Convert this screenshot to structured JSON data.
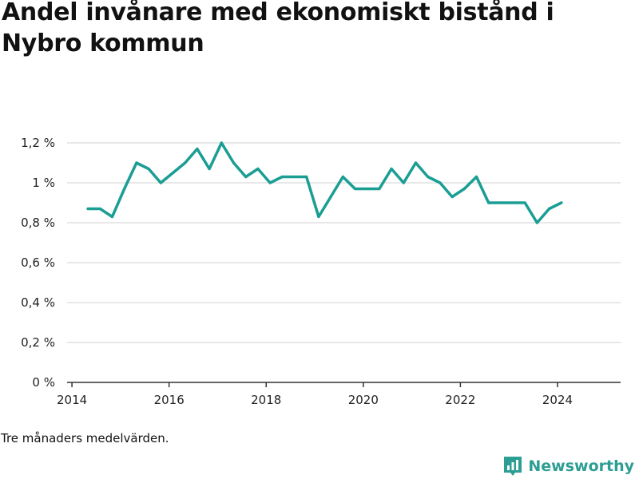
{
  "title": "Andel invånare med ekonomiskt bistånd i Nybro kommun",
  "note": "Tre månaders medelvärden.",
  "brand": {
    "name": "Newsworthy",
    "icon": "bar-chart-logo-icon",
    "color": "#2c9e93"
  },
  "chart_data": {
    "type": "line",
    "title": "Andel invånare med ekonomiskt bistånd i Nybro kommun",
    "xlabel": "",
    "ylabel": "",
    "xlim": [
      2013.9,
      2025.3
    ],
    "ylim": [
      0,
      1.2
    ],
    "y_ticks": [
      0,
      0.2,
      0.4,
      0.6,
      0.8,
      1.0,
      1.2
    ],
    "y_tick_labels": [
      "0 %",
      "0,2 %",
      "0,4 %",
      "0,6 %",
      "0,8 %",
      "1 %",
      "1,2 %"
    ],
    "x_ticks": [
      2014,
      2016,
      2018,
      2020,
      2022,
      2024
    ],
    "x_tick_labels": [
      "2014",
      "2016",
      "2018",
      "2020",
      "2022",
      "2024"
    ],
    "grid": true,
    "line_color": "#1a9e94",
    "series": [
      {
        "x": [
          2014.33,
          2014.58,
          2014.83,
          2015.08,
          2015.33,
          2015.58,
          2015.83,
          2016.08,
          2016.33,
          2016.58,
          2016.83,
          2017.08,
          2017.33,
          2017.58,
          2017.83,
          2018.08,
          2018.33,
          2018.58,
          2018.83,
          2019.08,
          2019.33,
          2019.58,
          2019.83,
          2020.08,
          2020.33,
          2020.58,
          2020.83,
          2021.08,
          2021.33,
          2021.58,
          2021.83,
          2022.08,
          2022.33,
          2022.58,
          2022.83,
          2023.08,
          2023.33,
          2023.58,
          2023.83,
          2024.08
        ],
        "values": [
          0.87,
          0.87,
          0.83,
          0.97,
          1.1,
          1.07,
          1.0,
          1.05,
          1.1,
          1.17,
          1.07,
          1.2,
          1.1,
          1.03,
          1.07,
          1.0,
          1.03,
          1.03,
          1.03,
          0.83,
          0.93,
          1.03,
          0.97,
          0.97,
          0.97,
          1.07,
          1.0,
          1.1,
          1.03,
          1.0,
          0.93,
          0.97,
          1.03,
          0.9,
          0.9,
          0.9,
          0.9,
          0.8,
          0.87,
          0.9
        ]
      }
    ]
  }
}
